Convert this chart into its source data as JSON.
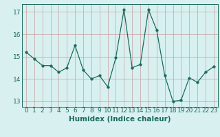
{
  "x": [
    0,
    1,
    2,
    3,
    4,
    5,
    6,
    7,
    8,
    9,
    10,
    11,
    12,
    13,
    14,
    15,
    16,
    17,
    18,
    19,
    20,
    21,
    22,
    23
  ],
  "y": [
    15.2,
    14.9,
    14.6,
    14.6,
    14.3,
    14.5,
    15.5,
    14.4,
    14.0,
    14.15,
    13.65,
    14.95,
    17.1,
    14.5,
    14.65,
    17.1,
    16.2,
    14.15,
    13.0,
    13.05,
    14.05,
    13.85,
    14.3,
    14.55
  ],
  "xlim": [
    -0.5,
    23.5
  ],
  "ylim": [
    12.75,
    17.35
  ],
  "yticks": [
    13,
    14,
    15,
    16,
    17
  ],
  "xticks": [
    0,
    1,
    2,
    3,
    4,
    5,
    6,
    7,
    8,
    9,
    10,
    11,
    12,
    13,
    14,
    15,
    16,
    17,
    18,
    19,
    20,
    21,
    22,
    23
  ],
  "xlabel": "Humidex (Indice chaleur)",
  "line_color": "#1a6b5c",
  "marker": "o",
  "marker_size": 2.5,
  "bg_color": "#d8f0f0",
  "grid_color": "#c8a0a0",
  "xlabel_fontsize": 7.5,
  "tick_fontsize": 6.5
}
